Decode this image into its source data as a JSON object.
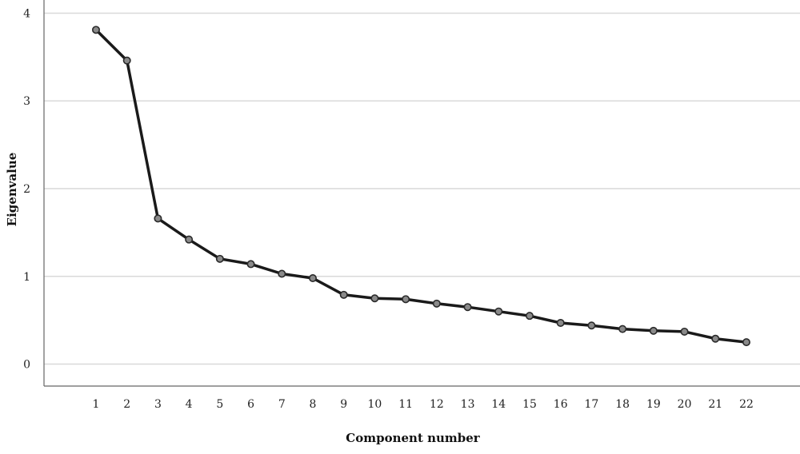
{
  "chart_data": {
    "type": "line",
    "title": "",
    "xlabel": "Component number",
    "ylabel": "Eigenvalue",
    "x": [
      1,
      2,
      3,
      4,
      5,
      6,
      7,
      8,
      9,
      10,
      11,
      12,
      13,
      14,
      15,
      16,
      17,
      18,
      19,
      20,
      21,
      22
    ],
    "x_tick_labels": [
      "1",
      "2",
      "3",
      "4",
      "5",
      "6",
      "7",
      "8",
      "9",
      "10",
      "11",
      "12",
      "13",
      "14",
      "15",
      "16",
      "17",
      "18",
      "19",
      "20",
      "21",
      "22"
    ],
    "series": [
      {
        "values": [
          3.81,
          3.46,
          1.66,
          1.42,
          1.2,
          1.14,
          1.03,
          0.98,
          0.79,
          0.75,
          0.74,
          0.69,
          0.65,
          0.6,
          0.55,
          0.47,
          0.44,
          0.4,
          0.38,
          0.37,
          0.29,
          0.25
        ],
        "color": "#1a1a1a"
      }
    ],
    "ylim": [
      -0.25,
      4.15
    ],
    "y_ticks": [
      0,
      1,
      2,
      3,
      4
    ],
    "y_tick_labels": [
      "0",
      "1",
      "2",
      "3",
      "4"
    ],
    "grid": "horizontal",
    "colors": {
      "line": "#1a1a1a",
      "marker_fill": "#8a8a8a",
      "marker_stroke": "#2a2a2a",
      "grid": "#d9d9d9",
      "axis": "#666666"
    }
  }
}
